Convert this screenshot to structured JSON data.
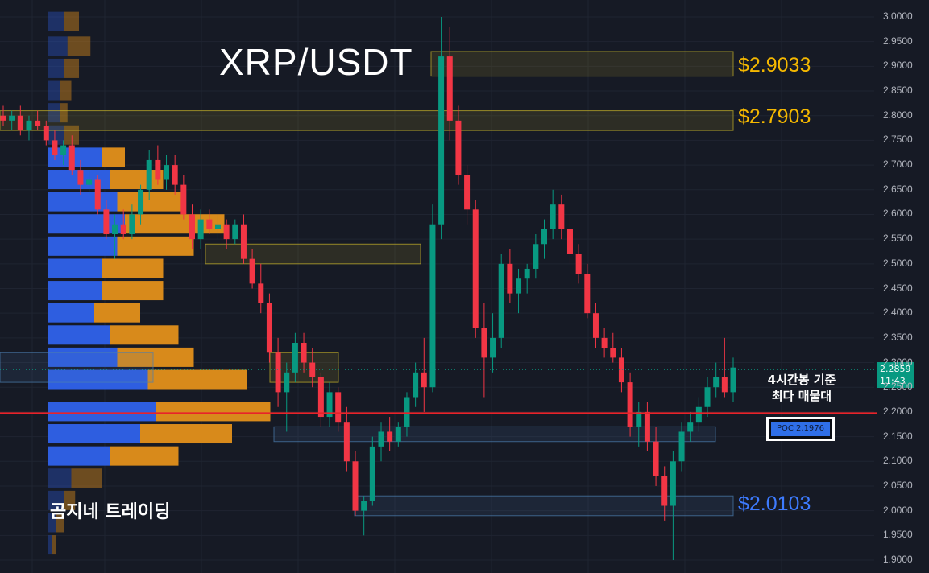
{
  "chart_data": {
    "type": "candlestick",
    "title": "XRP/USDT",
    "y_axis": {
      "ticks": [
        "3.0000",
        "2.9500",
        "2.9000",
        "2.8500",
        "2.8000",
        "2.7500",
        "2.7000",
        "2.6500",
        "2.6000",
        "2.5500",
        "2.5000",
        "2.4500",
        "2.4000",
        "2.3500",
        "2.3000",
        "2.2500",
        "2.2000",
        "2.1500",
        "2.1000",
        "2.0500",
        "2.0000",
        "1.9500",
        "1.9000"
      ],
      "range": [
        1.9,
        3.0
      ]
    },
    "current_price": {
      "price": "2.2859",
      "countdown": "11:43",
      "value": 2.2859
    },
    "levels": [
      {
        "label": "$2.9033",
        "color": "#f5b800",
        "value": 2.9033
      },
      {
        "label": "$2.7903",
        "color": "#f5b800",
        "value": 2.7903
      },
      {
        "label": "$2.0103",
        "color": "#3d7bff",
        "value": 2.0103
      }
    ],
    "poc": {
      "label": "POC  2.1976",
      "value": 2.1976,
      "line_color": "#e8232a"
    },
    "annotation": "4시간봉 기준\n최다 매물대",
    "watermark": "곰지네 트레이딩",
    "colors": {
      "up": "#089981",
      "down": "#f23645",
      "volume_buy": "#2e5ee0",
      "volume_sell": "#d88a1b",
      "background": "#161a25"
    },
    "volume_profile": [
      {
        "price": 2.99,
        "buy": 2,
        "sell": 2
      },
      {
        "price": 2.94,
        "buy": 2.5,
        "sell": 3
      },
      {
        "price": 2.895,
        "buy": 2,
        "sell": 2
      },
      {
        "price": 2.85,
        "buy": 1.5,
        "sell": 1.5
      },
      {
        "price": 2.805,
        "buy": 1.5,
        "sell": 1
      },
      {
        "price": 2.76,
        "buy": 2,
        "sell": 2
      },
      {
        "price": 2.715,
        "buy": 7,
        "sell": 3
      },
      {
        "price": 2.67,
        "buy": 8,
        "sell": 7
      },
      {
        "price": 2.625,
        "buy": 9,
        "sell": 9
      },
      {
        "price": 2.58,
        "buy": 10,
        "sell": 13
      },
      {
        "price": 2.535,
        "buy": 9,
        "sell": 10
      },
      {
        "price": 2.49,
        "buy": 7,
        "sell": 8
      },
      {
        "price": 2.445,
        "buy": 7,
        "sell": 8
      },
      {
        "price": 2.4,
        "buy": 6,
        "sell": 6
      },
      {
        "price": 2.355,
        "buy": 8,
        "sell": 9
      },
      {
        "price": 2.31,
        "buy": 9,
        "sell": 10
      },
      {
        "price": 2.265,
        "buy": 13,
        "sell": 13
      },
      {
        "price": 2.2,
        "buy": 14,
        "sell": 15
      },
      {
        "price": 2.155,
        "buy": 12,
        "sell": 12
      },
      {
        "price": 2.11,
        "buy": 8,
        "sell": 9
      },
      {
        "price": 2.065,
        "buy": 3,
        "sell": 4
      },
      {
        "price": 2.02,
        "buy": 2,
        "sell": 1.5
      },
      {
        "price": 1.975,
        "buy": 1,
        "sell": 1
      },
      {
        "price": 1.93,
        "buy": 0.5,
        "sell": 0.5
      }
    ],
    "candles": [
      [
        2.8,
        2.82,
        2.78,
        2.79
      ],
      [
        2.79,
        2.81,
        2.77,
        2.8
      ],
      [
        2.8,
        2.82,
        2.76,
        2.77
      ],
      [
        2.77,
        2.8,
        2.75,
        2.79
      ],
      [
        2.79,
        2.81,
        2.77,
        2.78
      ],
      [
        2.78,
        2.79,
        2.74,
        2.75
      ],
      [
        2.75,
        2.77,
        2.71,
        2.72
      ],
      [
        2.72,
        2.75,
        2.7,
        2.74
      ],
      [
        2.74,
        2.76,
        2.68,
        2.69
      ],
      [
        2.69,
        2.71,
        2.64,
        2.66
      ],
      [
        2.66,
        2.69,
        2.64,
        2.67
      ],
      [
        2.67,
        2.68,
        2.6,
        2.61
      ],
      [
        2.61,
        2.63,
        2.55,
        2.56
      ],
      [
        2.56,
        2.6,
        2.51,
        2.58
      ],
      [
        2.58,
        2.61,
        2.55,
        2.56
      ],
      [
        2.56,
        2.62,
        2.55,
        2.6
      ],
      [
        2.6,
        2.66,
        2.58,
        2.65
      ],
      [
        2.65,
        2.73,
        2.63,
        2.71
      ],
      [
        2.71,
        2.74,
        2.66,
        2.67
      ],
      [
        2.67,
        2.72,
        2.65,
        2.7
      ],
      [
        2.7,
        2.72,
        2.64,
        2.66
      ],
      [
        2.66,
        2.68,
        2.59,
        2.6
      ],
      [
        2.6,
        2.62,
        2.53,
        2.55
      ],
      [
        2.55,
        2.61,
        2.53,
        2.59
      ],
      [
        2.59,
        2.61,
        2.56,
        2.57
      ],
      [
        2.57,
        2.6,
        2.55,
        2.58
      ],
      [
        2.58,
        2.59,
        2.53,
        2.55
      ],
      [
        2.55,
        2.59,
        2.54,
        2.58
      ],
      [
        2.58,
        2.6,
        2.5,
        2.51
      ],
      [
        2.51,
        2.53,
        2.45,
        2.46
      ],
      [
        2.46,
        2.5,
        2.4,
        2.42
      ],
      [
        2.42,
        2.44,
        2.3,
        2.32
      ],
      [
        2.32,
        2.35,
        2.21,
        2.24
      ],
      [
        2.24,
        2.3,
        2.16,
        2.28
      ],
      [
        2.28,
        2.36,
        2.26,
        2.34
      ],
      [
        2.34,
        2.36,
        2.28,
        2.3
      ],
      [
        2.3,
        2.33,
        2.25,
        2.27
      ],
      [
        2.27,
        2.28,
        2.17,
        2.19
      ],
      [
        2.19,
        2.26,
        2.17,
        2.24
      ],
      [
        2.24,
        2.25,
        2.16,
        2.18
      ],
      [
        2.18,
        2.21,
        2.08,
        2.1
      ],
      [
        2.1,
        2.12,
        1.99,
        2.0
      ],
      [
        2.0,
        2.03,
        1.95,
        2.02
      ],
      [
        2.02,
        2.15,
        2.01,
        2.13
      ],
      [
        2.13,
        2.18,
        2.1,
        2.16
      ],
      [
        2.16,
        2.19,
        2.12,
        2.14
      ],
      [
        2.14,
        2.18,
        2.13,
        2.17
      ],
      [
        2.17,
        2.24,
        2.15,
        2.23
      ],
      [
        2.23,
        2.3,
        2.21,
        2.28
      ],
      [
        2.28,
        2.35,
        2.2,
        2.25
      ],
      [
        2.25,
        2.62,
        2.24,
        2.58
      ],
      [
        2.58,
        3.0,
        2.55,
        2.92
      ],
      [
        2.92,
        2.98,
        2.75,
        2.79
      ],
      [
        2.79,
        2.82,
        2.66,
        2.68
      ],
      [
        2.68,
        2.7,
        2.58,
        2.61
      ],
      [
        2.61,
        2.63,
        2.35,
        2.37
      ],
      [
        2.37,
        2.42,
        2.23,
        2.31
      ],
      [
        2.31,
        2.4,
        2.28,
        2.35
      ],
      [
        2.35,
        2.52,
        2.33,
        2.5
      ],
      [
        2.5,
        2.53,
        2.42,
        2.44
      ],
      [
        2.44,
        2.49,
        2.4,
        2.47
      ],
      [
        2.47,
        2.5,
        2.44,
        2.49
      ],
      [
        2.49,
        2.56,
        2.47,
        2.54
      ],
      [
        2.54,
        2.59,
        2.51,
        2.57
      ],
      [
        2.57,
        2.65,
        2.55,
        2.62
      ],
      [
        2.62,
        2.64,
        2.55,
        2.57
      ],
      [
        2.57,
        2.6,
        2.5,
        2.52
      ],
      [
        2.52,
        2.54,
        2.46,
        2.48
      ],
      [
        2.48,
        2.5,
        2.39,
        2.4
      ],
      [
        2.4,
        2.42,
        2.33,
        2.35
      ],
      [
        2.35,
        2.37,
        2.31,
        2.33
      ],
      [
        2.33,
        2.36,
        2.3,
        2.31
      ],
      [
        2.31,
        2.33,
        2.24,
        2.26
      ],
      [
        2.26,
        2.28,
        2.15,
        2.17
      ],
      [
        2.17,
        2.22,
        2.13,
        2.2
      ],
      [
        2.2,
        2.22,
        2.12,
        2.14
      ],
      [
        2.14,
        2.17,
        2.05,
        2.07
      ],
      [
        2.07,
        2.09,
        1.98,
        2.01
      ],
      [
        2.01,
        2.12,
        1.9,
        2.1
      ],
      [
        2.1,
        2.18,
        2.08,
        2.16
      ],
      [
        2.16,
        2.2,
        2.14,
        2.18
      ],
      [
        2.18,
        2.23,
        2.16,
        2.21
      ],
      [
        2.21,
        2.27,
        2.19,
        2.25
      ],
      [
        2.25,
        2.3,
        2.23,
        2.27
      ],
      [
        2.27,
        2.35,
        2.23,
        2.24
      ],
      [
        2.24,
        2.31,
        2.22,
        2.29
      ]
    ]
  }
}
